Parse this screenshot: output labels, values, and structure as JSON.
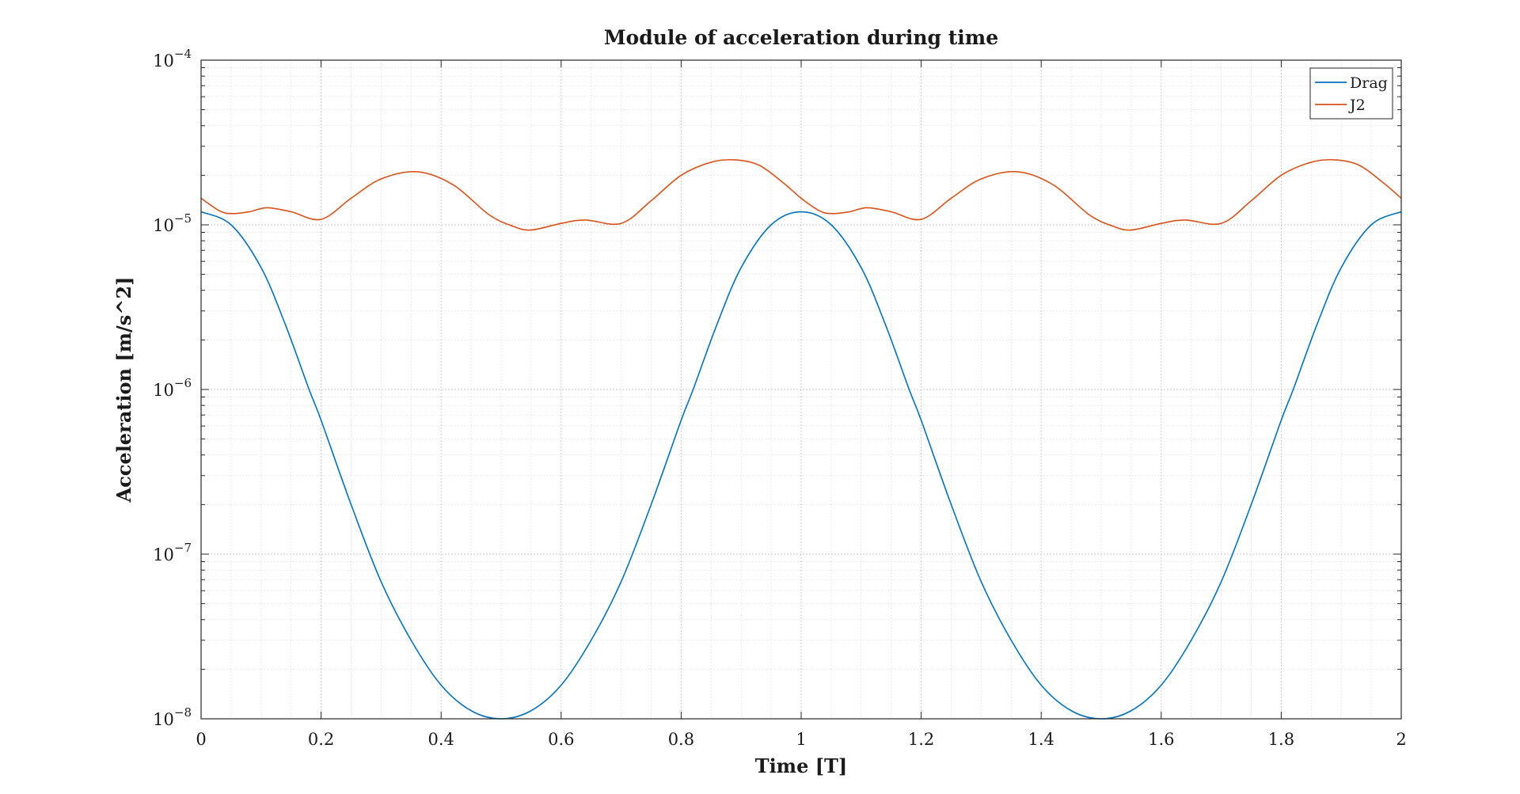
{
  "chart_data": {
    "type": "line",
    "title": "Module of acceleration during time",
    "xlabel": "Time [T]",
    "ylabel": "Acceleration [m/s^2]",
    "xlim": [
      0,
      2
    ],
    "ylim": [
      1e-08,
      0.0001
    ],
    "yscale": "log",
    "grid": true,
    "minor_grid": true,
    "legend_position": "top-right",
    "x_ticks": [
      0,
      0.2,
      0.4,
      0.6,
      0.8,
      1,
      1.2,
      1.4,
      1.6,
      1.8,
      2
    ],
    "x_tick_labels": [
      "0",
      "0.2",
      "0.4",
      "0.6",
      "0.8",
      "1",
      "1.2",
      "1.4",
      "1.6",
      "1.8",
      "2"
    ],
    "y_ticks": [
      1e-08,
      1e-07,
      1e-06,
      1e-05,
      0.0001
    ],
    "y_tick_labels": [
      {
        "base": "10",
        "exp": "−8"
      },
      {
        "base": "10",
        "exp": "−7"
      },
      {
        "base": "10",
        "exp": "−6"
      },
      {
        "base": "10",
        "exp": "−5"
      },
      {
        "base": "10",
        "exp": "−4"
      }
    ],
    "series": [
      {
        "name": "Drag",
        "color": "#0072BD",
        "x": [
          0,
          0.05,
          0.1,
          0.14,
          0.18,
          0.2,
          0.25,
          0.3,
          0.35,
          0.4,
          0.45,
          0.5,
          0.55,
          0.6,
          0.65,
          0.7,
          0.75,
          0.8,
          0.82,
          0.86,
          0.9,
          0.95,
          1.0,
          1.05,
          1.1,
          1.14,
          1.18,
          1.2,
          1.25,
          1.3,
          1.35,
          1.4,
          1.45,
          1.5,
          1.55,
          1.6,
          1.65,
          1.7,
          1.75,
          1.8,
          1.82,
          1.86,
          1.9,
          1.95,
          2.0
        ],
        "y": [
          1.2e-05,
          1e-05,
          5.5e-06,
          2.5e-06,
          1e-06,
          6.5e-07,
          2e-07,
          6.8e-08,
          3e-08,
          1.6e-08,
          1.12e-08,
          1e-08,
          1.12e-08,
          1.6e-08,
          3e-08,
          6.8e-08,
          2e-07,
          6.5e-07,
          1e-06,
          2.5e-06,
          5.5e-06,
          1e-05,
          1.2e-05,
          1e-05,
          5.5e-06,
          2.5e-06,
          1e-06,
          6.5e-07,
          2e-07,
          6.8e-08,
          3e-08,
          1.6e-08,
          1.12e-08,
          1e-08,
          1.12e-08,
          1.6e-08,
          3e-08,
          6.8e-08,
          2e-07,
          6.5e-07,
          1e-06,
          2.5e-06,
          5.5e-06,
          1e-05,
          1.2e-05
        ]
      },
      {
        "name": "J2",
        "color": "#D95319",
        "x": [
          0,
          0.03,
          0.05,
          0.08,
          0.11,
          0.15,
          0.2,
          0.25,
          0.3,
          0.36,
          0.42,
          0.48,
          0.52,
          0.55,
          0.6,
          0.64,
          0.7,
          0.75,
          0.8,
          0.85,
          0.89,
          0.93,
          0.97,
          1.0,
          1.03,
          1.05,
          1.08,
          1.11,
          1.15,
          1.2,
          1.25,
          1.3,
          1.36,
          1.42,
          1.48,
          1.52,
          1.55,
          1.6,
          1.64,
          1.7,
          1.75,
          1.8,
          1.85,
          1.89,
          1.93,
          1.97,
          2.0
        ],
        "y": [
          1.45e-05,
          1.22e-05,
          1.17e-05,
          1.2e-05,
          1.27e-05,
          1.2e-05,
          1.08e-05,
          1.45e-05,
          1.9e-05,
          2.1e-05,
          1.75e-05,
          1.15e-05,
          9.8e-06,
          9.3e-06,
          1.02e-05,
          1.07e-05,
          1.02e-05,
          1.4e-05,
          2e-05,
          2.4e-05,
          2.48e-05,
          2.3e-05,
          1.8e-05,
          1.45e-05,
          1.22e-05,
          1.17e-05,
          1.2e-05,
          1.27e-05,
          1.2e-05,
          1.08e-05,
          1.45e-05,
          1.9e-05,
          2.1e-05,
          1.75e-05,
          1.15e-05,
          9.8e-06,
          9.3e-06,
          1.02e-05,
          1.07e-05,
          1.02e-05,
          1.4e-05,
          2e-05,
          2.4e-05,
          2.48e-05,
          2.3e-05,
          1.8e-05,
          1.45e-05
        ]
      }
    ]
  }
}
